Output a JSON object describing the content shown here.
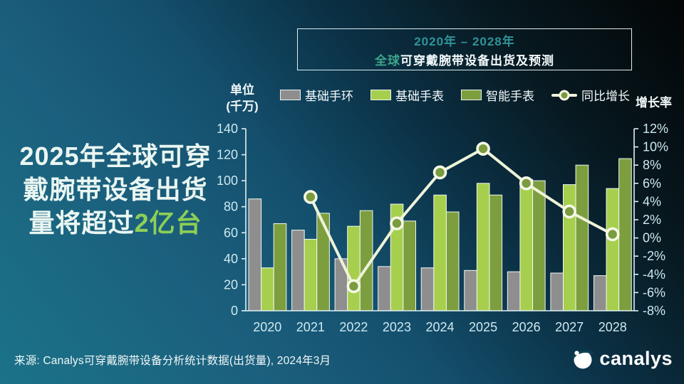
{
  "headline": {
    "line1": "2025年全球可穿",
    "line2": "戴腕带设备出货",
    "line3_prefix": "量将超过",
    "line3_highlight": "2亿台",
    "highlight_color": "#8ccf56"
  },
  "title_box": {
    "period": "2020年 – 2028年",
    "title_highlight": "全球",
    "title_rest": "可穿戴腕带设备出货及预测",
    "period_color": "#2f9399"
  },
  "axis_titles": {
    "left_line1": "单位",
    "left_line2": "(千万)",
    "right": "增长率"
  },
  "legend": {
    "items": [
      {
        "label": "基础手环",
        "type": "swatch",
        "color": "#8e8e8e"
      },
      {
        "label": "基础手表",
        "type": "swatch",
        "color": "#a6cf4d"
      },
      {
        "label": "智能手表",
        "type": "swatch",
        "color": "#7c9e3e"
      },
      {
        "label": "同比增长",
        "type": "line",
        "line_color": "#eef3d8",
        "marker_fill": "#7a9b3e"
      }
    ]
  },
  "chart_data": {
    "type": "bar",
    "subtype": "grouped-bars-with-line",
    "categories": [
      "2020",
      "2021",
      "2022",
      "2023",
      "2024",
      "2025",
      "2026",
      "2027",
      "2028"
    ],
    "series": [
      {
        "name": "基础手环",
        "type": "bar",
        "color": "#8e8e8e",
        "values": [
          86,
          62,
          40,
          34,
          33,
          31,
          30,
          29,
          27
        ]
      },
      {
        "name": "基础手表",
        "type": "bar",
        "color": "#a6cf4d",
        "values": [
          33,
          55,
          65,
          82,
          89,
          98,
          101,
          97,
          94
        ]
      },
      {
        "name": "智能手表",
        "type": "bar",
        "color": "#7c9e3e",
        "values": [
          67,
          75,
          77,
          69,
          76,
          89,
          100,
          112,
          117
        ]
      },
      {
        "name": "同比增长",
        "type": "line",
        "color": "#eef3d8",
        "marker_fill": "#7a9b3e",
        "marker_ring": "#f5f8e8",
        "values": [
          null,
          4.5,
          -5.3,
          1.6,
          7.2,
          9.8,
          6.0,
          2.9,
          0.4
        ],
        "axis": "right"
      }
    ],
    "y_left": {
      "min": 0,
      "max": 140,
      "step": 20
    },
    "y_right": {
      "min": -8,
      "max": 12,
      "step": 2,
      "suffix": "%"
    },
    "grid": false,
    "legend_position": "top",
    "axis_color": "#dff0f4",
    "tick_label_color": "#cde9f0",
    "bar_outline_color": "#f2f7f3"
  },
  "source": "来源: Canalys可穿戴腕带设备分析统计数据(出货量), 2024年3月",
  "logo": {
    "text": "canalys"
  }
}
